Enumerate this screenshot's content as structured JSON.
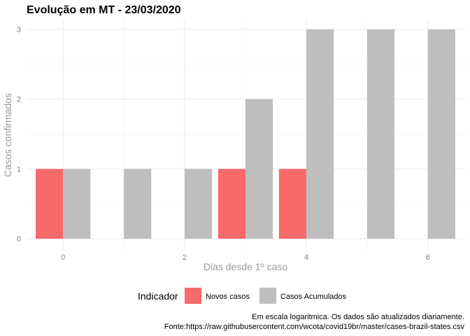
{
  "chart_data": {
    "type": "bar",
    "title": "Evolução em MT  -  23/03/2020",
    "xlabel": "Dias desde 1º caso",
    "ylabel": "Casos confirmados",
    "x": [
      0,
      1,
      2,
      3,
      4,
      5,
      6
    ],
    "xticks": [
      0,
      2,
      4,
      6
    ],
    "yticks": [
      0,
      1,
      2,
      3
    ],
    "xlim": [
      -0.6,
      6.6
    ],
    "ylim": [
      0,
      3
    ],
    "grid": true,
    "legend": {
      "title": "Indicador",
      "position": "bottom"
    },
    "series": [
      {
        "name": "Novos casos",
        "color": "#F8696B",
        "values": [
          1,
          0,
          0,
          1,
          1,
          0,
          0
        ]
      },
      {
        "name": "Casos Acumulados",
        "color": "#BEBEBE",
        "values": [
          1,
          1,
          1,
          2,
          3,
          3,
          3
        ]
      }
    ],
    "caption": [
      "Em escala logaritmica. Os dados são atualizados diariamente.",
      "Fonte:https://raw.githubusercontent.com/wcota/covid19br/master/cases-brazil-states.csv"
    ]
  }
}
